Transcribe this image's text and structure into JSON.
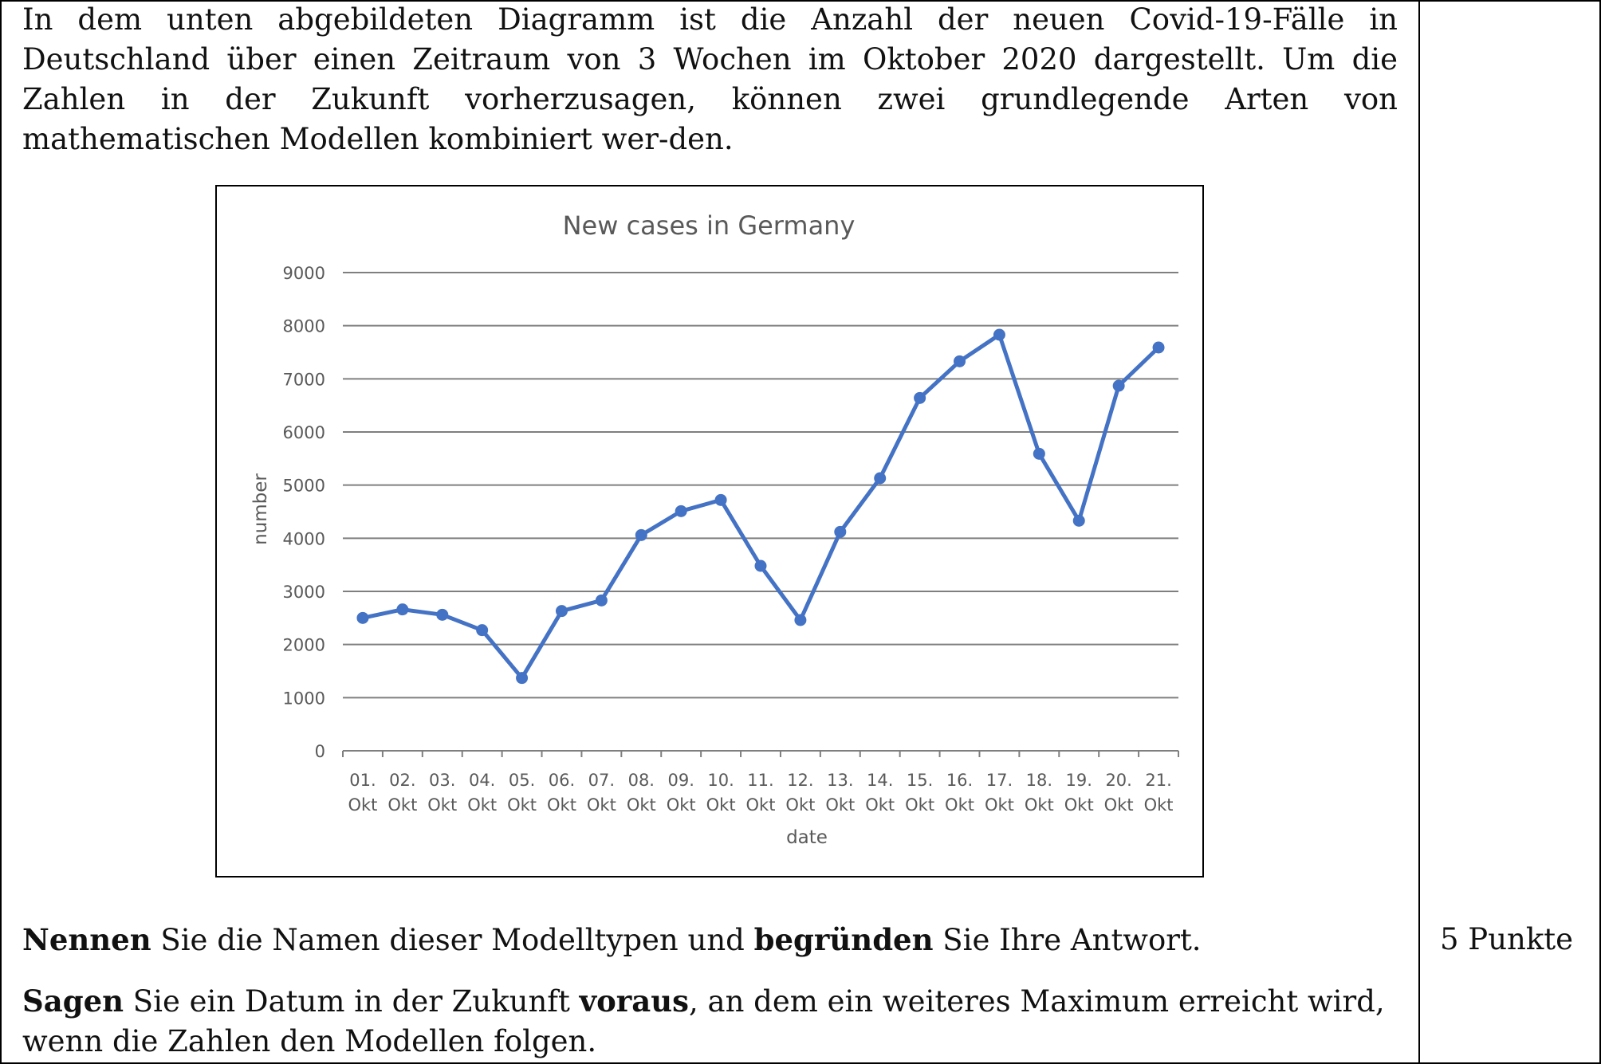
{
  "intro_text": "In dem unten abgebildeten Diagramm ist die Anzahl der neuen Covid-19-Fälle in Deutschland über einen Zeitraum von 3 Wochen im Oktober 2020 dargestellt. Um die Zahlen in der Zukunft vorherzusagen, können zwei grundlegende Arten von mathematischen Modellen kombiniert wer-den.",
  "task1": {
    "verb": "Nennen",
    "mid": " Sie die Namen dieser Modelltypen und ",
    "verb2": "begründen",
    "end": " Sie Ihre Antwort."
  },
  "task2": {
    "verb": "Sagen",
    "mid": " Sie ein Datum in der Zukunft ",
    "verb2": "voraus",
    "end": ", an dem ein weiteres Maximum erreicht wird, wenn die Zahlen den Modellen folgen."
  },
  "points": "5 Punkte",
  "chart_data": {
    "type": "line",
    "title": "New cases in Germany",
    "xlabel": "date",
    "ylabel": "number",
    "ylim": [
      0,
      9000
    ],
    "yticks": [
      0,
      1000,
      2000,
      3000,
      4000,
      5000,
      6000,
      7000,
      8000,
      9000
    ],
    "grid": true,
    "line_color": "#4472C4",
    "categories": [
      [
        "01.",
        "Okt"
      ],
      [
        "02.",
        "Okt"
      ],
      [
        "03.",
        "Okt"
      ],
      [
        "04.",
        "Okt"
      ],
      [
        "05.",
        "Okt"
      ],
      [
        "06.",
        "Okt"
      ],
      [
        "07.",
        "Okt"
      ],
      [
        "08.",
        "Okt"
      ],
      [
        "09.",
        "Okt"
      ],
      [
        "10.",
        "Okt"
      ],
      [
        "11.",
        "Okt"
      ],
      [
        "12.",
        "Okt"
      ],
      [
        "13.",
        "Okt"
      ],
      [
        "14.",
        "Okt"
      ],
      [
        "15.",
        "Okt"
      ],
      [
        "16.",
        "Okt"
      ],
      [
        "17.",
        "Okt"
      ],
      [
        "18.",
        "Okt"
      ],
      [
        "19.",
        "Okt"
      ],
      [
        "20.",
        "Okt"
      ],
      [
        "21.",
        "Okt"
      ]
    ],
    "values": [
      2500,
      2660,
      2560,
      2270,
      1370,
      2630,
      2830,
      4060,
      4510,
      4720,
      3480,
      2460,
      4120,
      5130,
      6640,
      7330,
      7830,
      5590,
      4330,
      6870,
      7590
    ]
  }
}
